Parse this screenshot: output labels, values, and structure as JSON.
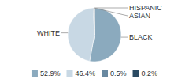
{
  "chart_data": {
    "type": "pie",
    "categories": [
      "BLACK",
      "WHITE",
      "ASIAN",
      "HISPANIC"
    ],
    "values": [
      52.9,
      46.4,
      0.5,
      0.2
    ],
    "value_labels": [
      "52.9%",
      "46.4%",
      "0.5%",
      "0.2%"
    ],
    "colors": [
      "#8BAABE",
      "#C8D8E4",
      "#6888A0",
      "#2A4A62"
    ],
    "legend": "bottom"
  }
}
